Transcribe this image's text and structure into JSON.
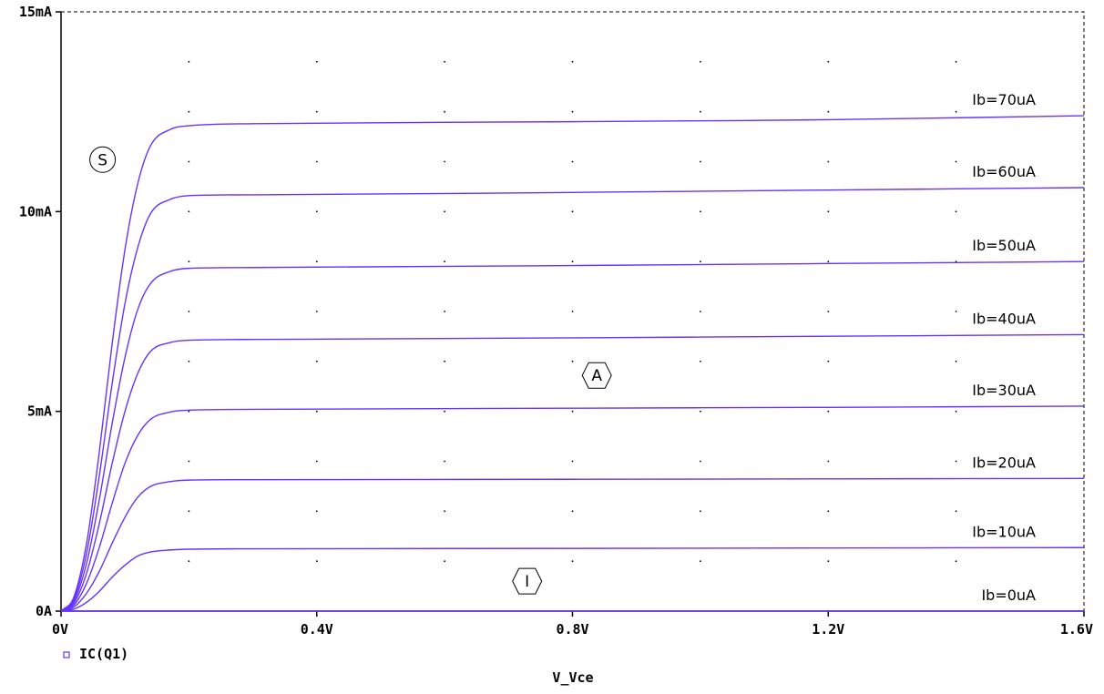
{
  "chart_data": {
    "type": "line",
    "title": "",
    "xlabel": "V_Vce",
    "ylabel": "",
    "xlim": [
      0,
      1.6
    ],
    "ylim": [
      0,
      15
    ],
    "x_unit": "V",
    "y_unit": "mA",
    "x_ticks": [
      0,
      0.4,
      0.8,
      1.2,
      1.6
    ],
    "x_tick_labels": [
      "0V",
      "0.4V",
      "0.8V",
      "1.2V",
      "1.6V"
    ],
    "y_ticks": [
      0,
      5,
      10,
      15
    ],
    "y_tick_labels": [
      "0A",
      "5mA",
      "10mA",
      "15mA"
    ],
    "grid": "dotted",
    "legend": {
      "placement": "bottom-left",
      "entries": [
        {
          "label": "IC(Q1)",
          "color": "#6633ff"
        }
      ]
    },
    "curve_color": "#6633ff",
    "series": [
      {
        "label": "Ib=0uA",
        "points": [
          [
            0,
            0
          ],
          [
            0.4,
            0
          ],
          [
            0.8,
            0
          ],
          [
            1.2,
            0
          ],
          [
            1.6,
            0
          ]
        ]
      },
      {
        "label": "Ib=10uA",
        "points": [
          [
            0,
            0
          ],
          [
            0.02,
            0.05
          ],
          [
            0.04,
            0.22
          ],
          [
            0.06,
            0.5
          ],
          [
            0.08,
            0.85
          ],
          [
            0.1,
            1.15
          ],
          [
            0.12,
            1.38
          ],
          [
            0.14,
            1.48
          ],
          [
            0.17,
            1.53
          ],
          [
            0.2,
            1.55
          ],
          [
            0.3,
            1.56
          ],
          [
            0.8,
            1.57
          ],
          [
            1.2,
            1.58
          ],
          [
            1.6,
            1.59
          ]
        ]
      },
      {
        "label": "Ib=20uA",
        "points": [
          [
            0,
            0
          ],
          [
            0.02,
            0.1
          ],
          [
            0.04,
            0.45
          ],
          [
            0.06,
            1.0
          ],
          [
            0.08,
            1.7
          ],
          [
            0.1,
            2.35
          ],
          [
            0.12,
            2.85
          ],
          [
            0.14,
            3.12
          ],
          [
            0.17,
            3.24
          ],
          [
            0.2,
            3.28
          ],
          [
            0.3,
            3.29
          ],
          [
            0.8,
            3.3
          ],
          [
            1.2,
            3.31
          ],
          [
            1.6,
            3.32
          ]
        ]
      },
      {
        "label": "Ib=30uA",
        "points": [
          [
            0,
            0
          ],
          [
            0.02,
            0.15
          ],
          [
            0.04,
            0.7
          ],
          [
            0.06,
            1.6
          ],
          [
            0.08,
            2.7
          ],
          [
            0.1,
            3.7
          ],
          [
            0.12,
            4.4
          ],
          [
            0.14,
            4.8
          ],
          [
            0.17,
            4.98
          ],
          [
            0.2,
            5.03
          ],
          [
            0.3,
            5.05
          ],
          [
            0.8,
            5.08
          ],
          [
            1.2,
            5.1
          ],
          [
            1.6,
            5.13
          ]
        ]
      },
      {
        "label": "Ib=40uA",
        "points": [
          [
            0,
            0
          ],
          [
            0.02,
            0.2
          ],
          [
            0.04,
            0.95
          ],
          [
            0.06,
            2.2
          ],
          [
            0.08,
            3.7
          ],
          [
            0.1,
            5.0
          ],
          [
            0.12,
            5.95
          ],
          [
            0.14,
            6.5
          ],
          [
            0.17,
            6.72
          ],
          [
            0.2,
            6.78
          ],
          [
            0.3,
            6.8
          ],
          [
            0.8,
            6.84
          ],
          [
            1.2,
            6.88
          ],
          [
            1.6,
            6.92
          ]
        ]
      },
      {
        "label": "Ib=50uA",
        "points": [
          [
            0,
            0
          ],
          [
            0.02,
            0.25
          ],
          [
            0.04,
            1.2
          ],
          [
            0.06,
            2.8
          ],
          [
            0.08,
            4.7
          ],
          [
            0.1,
            6.35
          ],
          [
            0.12,
            7.55
          ],
          [
            0.14,
            8.2
          ],
          [
            0.17,
            8.5
          ],
          [
            0.2,
            8.58
          ],
          [
            0.3,
            8.6
          ],
          [
            0.8,
            8.65
          ],
          [
            1.2,
            8.7
          ],
          [
            1.6,
            8.75
          ]
        ]
      },
      {
        "label": "Ib=60uA",
        "points": [
          [
            0,
            0
          ],
          [
            0.02,
            0.3
          ],
          [
            0.04,
            1.45
          ],
          [
            0.06,
            3.4
          ],
          [
            0.08,
            5.7
          ],
          [
            0.1,
            7.7
          ],
          [
            0.12,
            9.1
          ],
          [
            0.14,
            9.95
          ],
          [
            0.17,
            10.3
          ],
          [
            0.2,
            10.4
          ],
          [
            0.3,
            10.42
          ],
          [
            0.8,
            10.48
          ],
          [
            1.2,
            10.54
          ],
          [
            1.6,
            10.6
          ]
        ]
      },
      {
        "label": "Ib=70uA",
        "points": [
          [
            0,
            0
          ],
          [
            0.02,
            0.35
          ],
          [
            0.04,
            1.7
          ],
          [
            0.06,
            4.0
          ],
          [
            0.08,
            6.7
          ],
          [
            0.1,
            9.05
          ],
          [
            0.12,
            10.7
          ],
          [
            0.14,
            11.65
          ],
          [
            0.17,
            12.05
          ],
          [
            0.2,
            12.15
          ],
          [
            0.3,
            12.2
          ],
          [
            0.8,
            12.25
          ],
          [
            1.2,
            12.3
          ],
          [
            1.6,
            12.4
          ]
        ]
      }
    ],
    "annotations": [
      {
        "text": "S",
        "x": 0.065,
        "y": 11.3,
        "shape": "circle"
      },
      {
        "text": "A",
        "x": 0.838,
        "y": 5.9,
        "shape": "hexagon"
      },
      {
        "text": "I",
        "x": 0.729,
        "y": 0.75,
        "shape": "hexagon"
      }
    ]
  }
}
